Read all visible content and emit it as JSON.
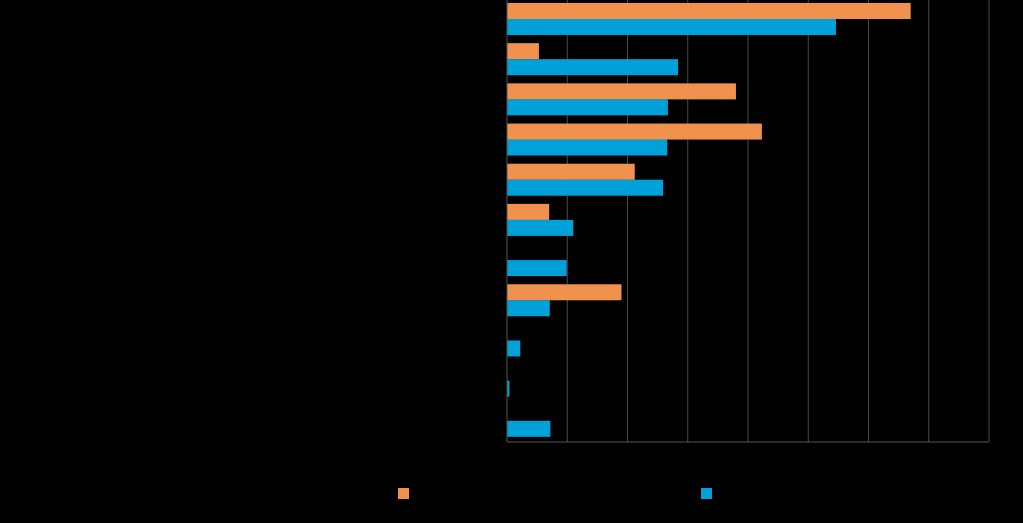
{
  "chart_data": {
    "type": "bar",
    "orientation": "horizontal",
    "categories": [
      "",
      "",
      "",
      "",
      "",
      "",
      "",
      "",
      "",
      "",
      ""
    ],
    "xlim": [
      0,
      8
    ],
    "grid": true,
    "legend_position": "bottom",
    "series": [
      {
        "key": "orange",
        "color": "#F0914E",
        "values": [
          6.7,
          0.53,
          3.8,
          4.23,
          2.12,
          0.7,
          0,
          1.9,
          0,
          0,
          0
        ]
      },
      {
        "key": "blue",
        "color": "#00A0D8",
        "values": [
          5.46,
          2.84,
          2.67,
          2.66,
          2.59,
          1.1,
          0.99,
          0.71,
          0.22,
          0.04,
          0.72
        ]
      }
    ]
  }
}
